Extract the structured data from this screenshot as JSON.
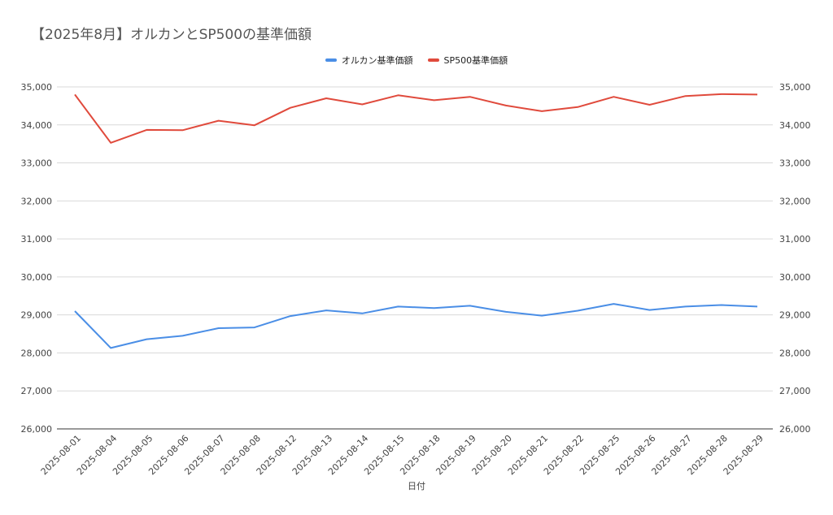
{
  "chart_data": {
    "type": "line",
    "title": "【2025年8月】オルカンとSP500の基準価額",
    "xlabel": "日付",
    "ylabel": "",
    "ylim": [
      26000,
      35000
    ],
    "yticks": [
      "26,000",
      "27,000",
      "28,000",
      "29,000",
      "30,000",
      "31,000",
      "32,000",
      "33,000",
      "34,000",
      "35,000"
    ],
    "dual_axis": true,
    "grid": true,
    "legend_position": "top-center",
    "categories": [
      "2025-08-01",
      "2025-08-04",
      "2025-08-05",
      "2025-08-06",
      "2025-08-07",
      "2025-08-08",
      "2025-08-12",
      "2025-08-13",
      "2025-08-14",
      "2025-08-15",
      "2025-08-18",
      "2025-08-19",
      "2025-08-20",
      "2025-08-21",
      "2025-08-22",
      "2025-08-25",
      "2025-08-26",
      "2025-08-27",
      "2025-08-28",
      "2025-08-29"
    ],
    "series": [
      {
        "name": "オルカン基準価額",
        "color": "#4a8ee6",
        "values": [
          29100,
          28130,
          28360,
          28450,
          28650,
          28670,
          28970,
          29120,
          29040,
          29220,
          29180,
          29240,
          29080,
          28980,
          29110,
          29290,
          29130,
          29220,
          29260,
          29220
        ]
      },
      {
        "name": "SP500基準価額",
        "color": "#e04a3c",
        "values": [
          34800,
          33530,
          33870,
          33860,
          34110,
          33990,
          34450,
          34700,
          34540,
          34780,
          34650,
          34740,
          34510,
          34360,
          34470,
          34740,
          34530,
          34760,
          34810,
          34800
        ]
      }
    ]
  }
}
